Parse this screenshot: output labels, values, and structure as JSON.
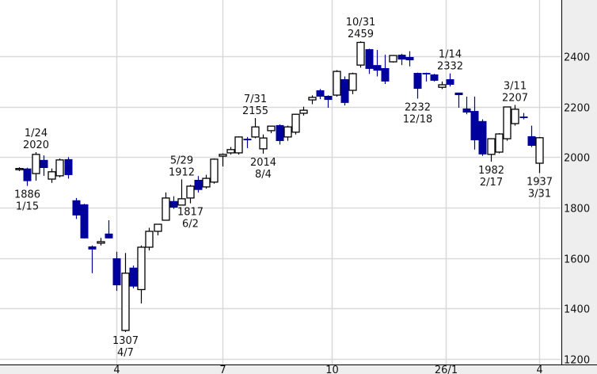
{
  "chart_data": {
    "type": "candlestick",
    "title": "",
    "ylim": [
      1200,
      2530
    ],
    "yticks": [
      1200,
      1400,
      1600,
      1800,
      2000,
      2200,
      2400
    ],
    "xticks": [
      {
        "index": 12,
        "label": "4"
      },
      {
        "index": 25,
        "label": "7"
      },
      {
        "index": 38.5,
        "label": "10"
      },
      {
        "index": 52.5,
        "label": "26/1"
      },
      {
        "index": 64,
        "label": "4"
      }
    ],
    "grid": true,
    "colors": {
      "up_fill": "#ffffff",
      "up_line": "#000000",
      "down": "#00009c",
      "grid": "#d9d9d9",
      "axis_bg": "#eeeeee"
    },
    "candles": [
      [
        1955,
        1960,
        1945,
        1955
      ],
      [
        1955,
        1958,
        1886,
        1905
      ],
      [
        1935,
        2020,
        1907,
        2011
      ],
      [
        1989,
        2007,
        1926,
        1957
      ],
      [
        1913,
        1955,
        1898,
        1942
      ],
      [
        1926,
        1995,
        1920,
        1989
      ],
      [
        1992,
        2000,
        1915,
        1929
      ],
      [
        1829,
        1838,
        1755,
        1769
      ],
      [
        1813,
        1815,
        1678,
        1678
      ],
      [
        1646,
        1650,
        1540,
        1634
      ],
      [
        1659,
        1680,
        1650,
        1665
      ],
      [
        1697,
        1750,
        1678,
        1678
      ],
      [
        1599,
        1625,
        1470,
        1492
      ],
      [
        1313,
        1620,
        1307,
        1540
      ],
      [
        1562,
        1570,
        1480,
        1487
      ],
      [
        1475,
        1650,
        1420,
        1643
      ],
      [
        1643,
        1720,
        1630,
        1706
      ],
      [
        1706,
        1735,
        1690,
        1734
      ],
      [
        1750,
        1860,
        1750,
        1838
      ],
      [
        1826,
        1845,
        1795,
        1800
      ],
      [
        1810,
        1912,
        1817,
        1835
      ],
      [
        1838,
        1890,
        1817,
        1885
      ],
      [
        1910,
        1925,
        1860,
        1870
      ],
      [
        1882,
        1930,
        1875,
        1916
      ],
      [
        1901,
        1995,
        1895,
        1992
      ],
      [
        2004,
        2015,
        1963,
        2011
      ],
      [
        2017,
        2040,
        2010,
        2030
      ],
      [
        2017,
        2082,
        2010,
        2080
      ],
      [
        2073,
        2080,
        2036,
        2067
      ],
      [
        2080,
        2155,
        2075,
        2120
      ],
      [
        2033,
        2090,
        2014,
        2076
      ],
      [
        2105,
        2125,
        2095,
        2123
      ],
      [
        2127,
        2130,
        2050,
        2064
      ],
      [
        2080,
        2125,
        2065,
        2120
      ],
      [
        2099,
        2172,
        2090,
        2170
      ],
      [
        2174,
        2200,
        2165,
        2186
      ],
      [
        2227,
        2245,
        2210,
        2237
      ],
      [
        2265,
        2270,
        2230,
        2240
      ],
      [
        2243,
        2245,
        2196,
        2227
      ],
      [
        2246,
        2345,
        2240,
        2340
      ],
      [
        2309,
        2320,
        2205,
        2215
      ],
      [
        2265,
        2335,
        2250,
        2331
      ],
      [
        2365,
        2459,
        2355,
        2455
      ],
      [
        2428,
        2430,
        2330,
        2350
      ],
      [
        2365,
        2425,
        2320,
        2343
      ],
      [
        2353,
        2406,
        2290,
        2300
      ],
      [
        2378,
        2405,
        2375,
        2403
      ],
      [
        2406,
        2410,
        2365,
        2387
      ],
      [
        2397,
        2420,
        2360,
        2384
      ],
      [
        2334,
        2335,
        2232,
        2271
      ],
      [
        2334,
        2335,
        2300,
        2328
      ],
      [
        2328,
        2330,
        2300,
        2303
      ],
      [
        2277,
        2300,
        2270,
        2287
      ],
      [
        2309,
        2332,
        2280,
        2287
      ],
      [
        2256,
        2256,
        2196,
        2246
      ],
      [
        2193,
        2240,
        2170,
        2177
      ],
      [
        2183,
        2240,
        2030,
        2067
      ],
      [
        2143,
        2150,
        2005,
        2011
      ],
      [
        2011,
        2075,
        1982,
        2073
      ],
      [
        2020,
        2095,
        2015,
        2092
      ],
      [
        2073,
        2200,
        2065,
        2199
      ],
      [
        2133,
        2207,
        2125,
        2190
      ],
      [
        2161,
        2175,
        2150,
        2155
      ],
      [
        2083,
        2125,
        2040,
        2045
      ],
      [
        1976,
        2080,
        1937,
        2077
      ]
    ],
    "annotations": [
      {
        "index": 2,
        "pos": "above",
        "date": "1/24",
        "value": "2020"
      },
      {
        "index": 1,
        "pos": "below",
        "date": "1/15",
        "value": "1886"
      },
      {
        "index": 13,
        "pos": "below",
        "date": "4/7",
        "value": "1307"
      },
      {
        "index": 20,
        "pos": "above",
        "date": "5/29",
        "value": "1912"
      },
      {
        "index": 21,
        "pos": "below",
        "date": "6/2",
        "value": "1817"
      },
      {
        "index": 29,
        "pos": "above",
        "date": "7/31",
        "value": "2155"
      },
      {
        "index": 30,
        "pos": "below",
        "date": "8/4",
        "value": "2014"
      },
      {
        "index": 42,
        "pos": "above",
        "date": "10/31",
        "value": "2459"
      },
      {
        "index": 49,
        "pos": "below",
        "date": "12/18",
        "value": "2232"
      },
      {
        "index": 53,
        "pos": "above",
        "date": "1/14",
        "value": "2332"
      },
      {
        "index": 58,
        "pos": "below",
        "date": "2/17",
        "value": "1982"
      },
      {
        "index": 61,
        "pos": "above",
        "date": "3/11",
        "value": "2207"
      },
      {
        "index": 64,
        "pos": "below",
        "date": "3/31",
        "value": "1937"
      }
    ]
  }
}
